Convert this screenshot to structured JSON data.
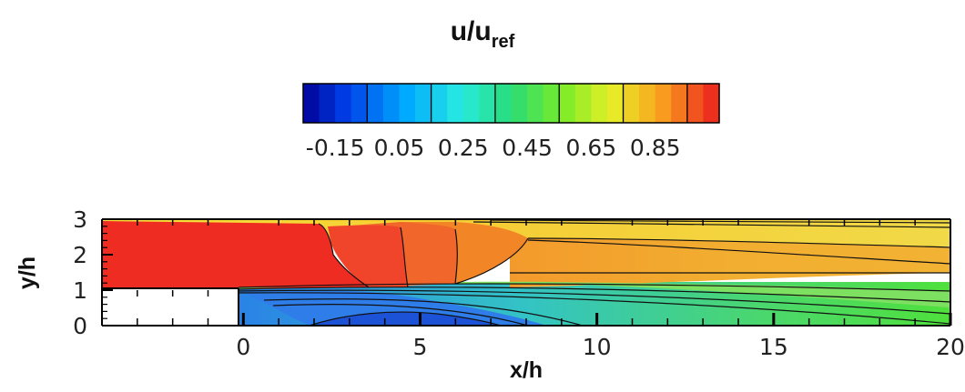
{
  "chart_data": {
    "type": "heatmap",
    "title": {
      "base": "u/u",
      "sub": "ref"
    },
    "colorbar": {
      "min": -0.25,
      "max": 1.05,
      "band_step": 0.05,
      "line_every": 0.2,
      "tick_values": [
        -0.15,
        0.05,
        0.25,
        0.45,
        0.65,
        0.85
      ],
      "tick_labels": [
        "-0.15",
        "0.05",
        "0.25",
        "0.45",
        "0.65",
        "0.85"
      ]
    },
    "domain": {
      "xlabel": "x/h",
      "ylabel": "y/h",
      "xlim": [
        -4,
        20
      ],
      "ylim": [
        0,
        3
      ],
      "x_ticks": [
        0,
        5,
        10,
        15,
        20
      ],
      "x_tick_labels": [
        "0",
        "5",
        "10",
        "15",
        "20"
      ],
      "y_ticks": [
        0,
        1,
        2,
        3
      ],
      "y_tick_labels": [
        "0",
        "1",
        "2",
        "3"
      ],
      "step": {
        "x_from": -4,
        "x_to": 0,
        "y_from": 0,
        "y_to": 1
      }
    },
    "regions": [
      {
        "name": "inlet-core",
        "value": 1.0
      },
      {
        "name": "core-band-1",
        "value": 0.95
      },
      {
        "name": "core-band-2",
        "value": 0.9
      },
      {
        "name": "core-band-3",
        "value": 0.85
      },
      {
        "name": "downstream-core",
        "value": 0.8
      },
      {
        "name": "recirculation-bubble",
        "value": -0.15
      }
    ]
  }
}
